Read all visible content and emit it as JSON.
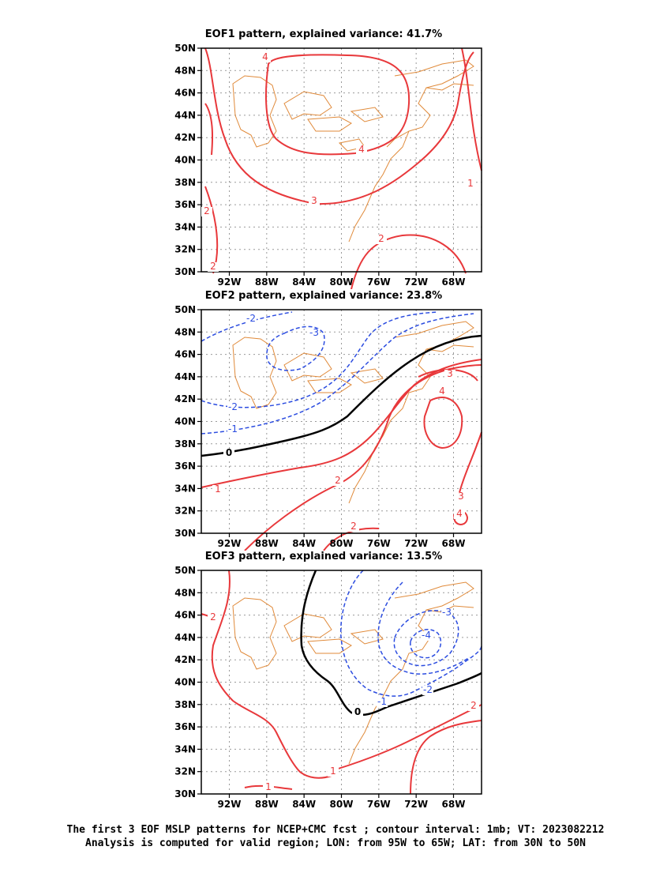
{
  "panels": [
    {
      "title": "EOF1 pattern, explained variance: 41.7%"
    },
    {
      "title": "EOF2 pattern, explained variance: 23.8%"
    },
    {
      "title": "EOF3 pattern, explained variance: 13.5%"
    }
  ],
  "axes": {
    "lat_labels": [
      "50N",
      "48N",
      "46N",
      "44N",
      "42N",
      "40N",
      "38N",
      "36N",
      "34N",
      "32N",
      "30N"
    ],
    "lon_labels": [
      "92W",
      "88W",
      "84W",
      "80W",
      "76W",
      "72W",
      "68W"
    ]
  },
  "caption": {
    "line1": "The first 3 EOF MSLP patterns for NCEP+CMC fcst ; contour interval: 1mb; VT: 2023082212",
    "line2": "Analysis is computed for valid region; LON: from 95W to 65W; LAT: from 30N to 50N"
  },
  "contour_labels": {
    "eof1": [
      "4",
      "4",
      "3",
      "2",
      "2",
      "2",
      "1"
    ],
    "eof2": [
      "-2",
      "-3",
      "-2",
      "-1",
      "0",
      "1",
      "2",
      "2",
      "3",
      "4",
      "3",
      "4"
    ],
    "eof3": [
      "2",
      "-3",
      "-4",
      "-2",
      "-1",
      "0",
      "1",
      "1",
      "2"
    ]
  },
  "colors": {
    "positive": "#e8383b",
    "negative": "#2b4ce0",
    "zero": "#000000",
    "coast": "#e08a3a",
    "grid": "#9a9a9a"
  }
}
